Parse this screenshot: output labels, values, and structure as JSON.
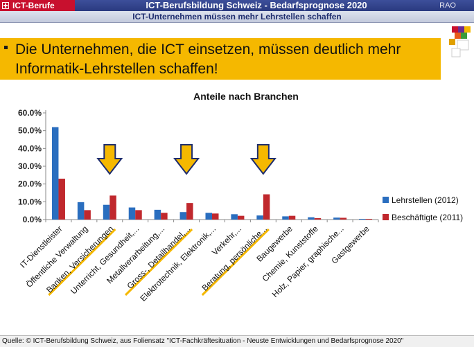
{
  "header": {
    "brand": "ICT-Berufe",
    "title": "ICT-Berufsbildung Schweiz - Bedarfsprognose 2020",
    "org": "RAO",
    "subtitle": "ICT-Unternehmen müssen mehr Lehrstellen schaffen"
  },
  "headline": "Die Unternehmen, die ICT einsetzen, müssen deutlich mehr Informatik-Lehrstellen schaffen!",
  "footer": {
    "source": "Quelle: © ICT-Berufsbildung Schweiz, aus Foliensatz \"ICT-Fachkräftesituation - Neuste Entwicklungen und Bedarfsprognose 2020\""
  },
  "colors": {
    "blue": "#2a6ebf",
    "red": "#c0282d",
    "banner": "#f5b800",
    "header": "#2a3a80"
  },
  "chart_data": {
    "type": "bar",
    "title": "Anteile nach Branchen",
    "categories": [
      "IT-Dienstleister",
      "Öffentliche Verwaltung",
      "Banken, Versicherungen",
      "Unterricht, Gesundheit,...",
      "Metallverarbeitung,...",
      "Gross-, Detailhandel,...",
      "Elektrotechnik, Elektronik,...",
      "Verkehr,...",
      "Beratung, persönliche...",
      "Baugewerbe",
      "Chemie, Kunststoffe",
      "Holz, Papier, graphische...",
      "Gastgewerbe"
    ],
    "series": [
      {
        "name": "Lehrstellen (2012)",
        "color": "#2a6ebf",
        "values": [
          52.0,
          9.8,
          8.3,
          6.8,
          5.5,
          4.2,
          3.8,
          3.0,
          2.3,
          1.8,
          1.3,
          1.1,
          0.4
        ]
      },
      {
        "name": "Beschäftigte (2011)",
        "color": "#c0282d",
        "values": [
          23.0,
          5.3,
          13.5,
          5.3,
          3.8,
          9.3,
          3.4,
          2.1,
          14.2,
          2.1,
          0.8,
          1.0,
          0.4
        ]
      }
    ],
    "ylim": [
      0,
      60
    ],
    "yticks": [
      "0.0%",
      "10.0%",
      "20.0%",
      "30.0%",
      "40.0%",
      "50.0%",
      "60.0%"
    ],
    "highlighted": [
      "Banken, Versicherungen",
      "Gross-, Detailhandel,...",
      "Beratung, persönliche..."
    ],
    "grid": false,
    "legend": "right"
  }
}
